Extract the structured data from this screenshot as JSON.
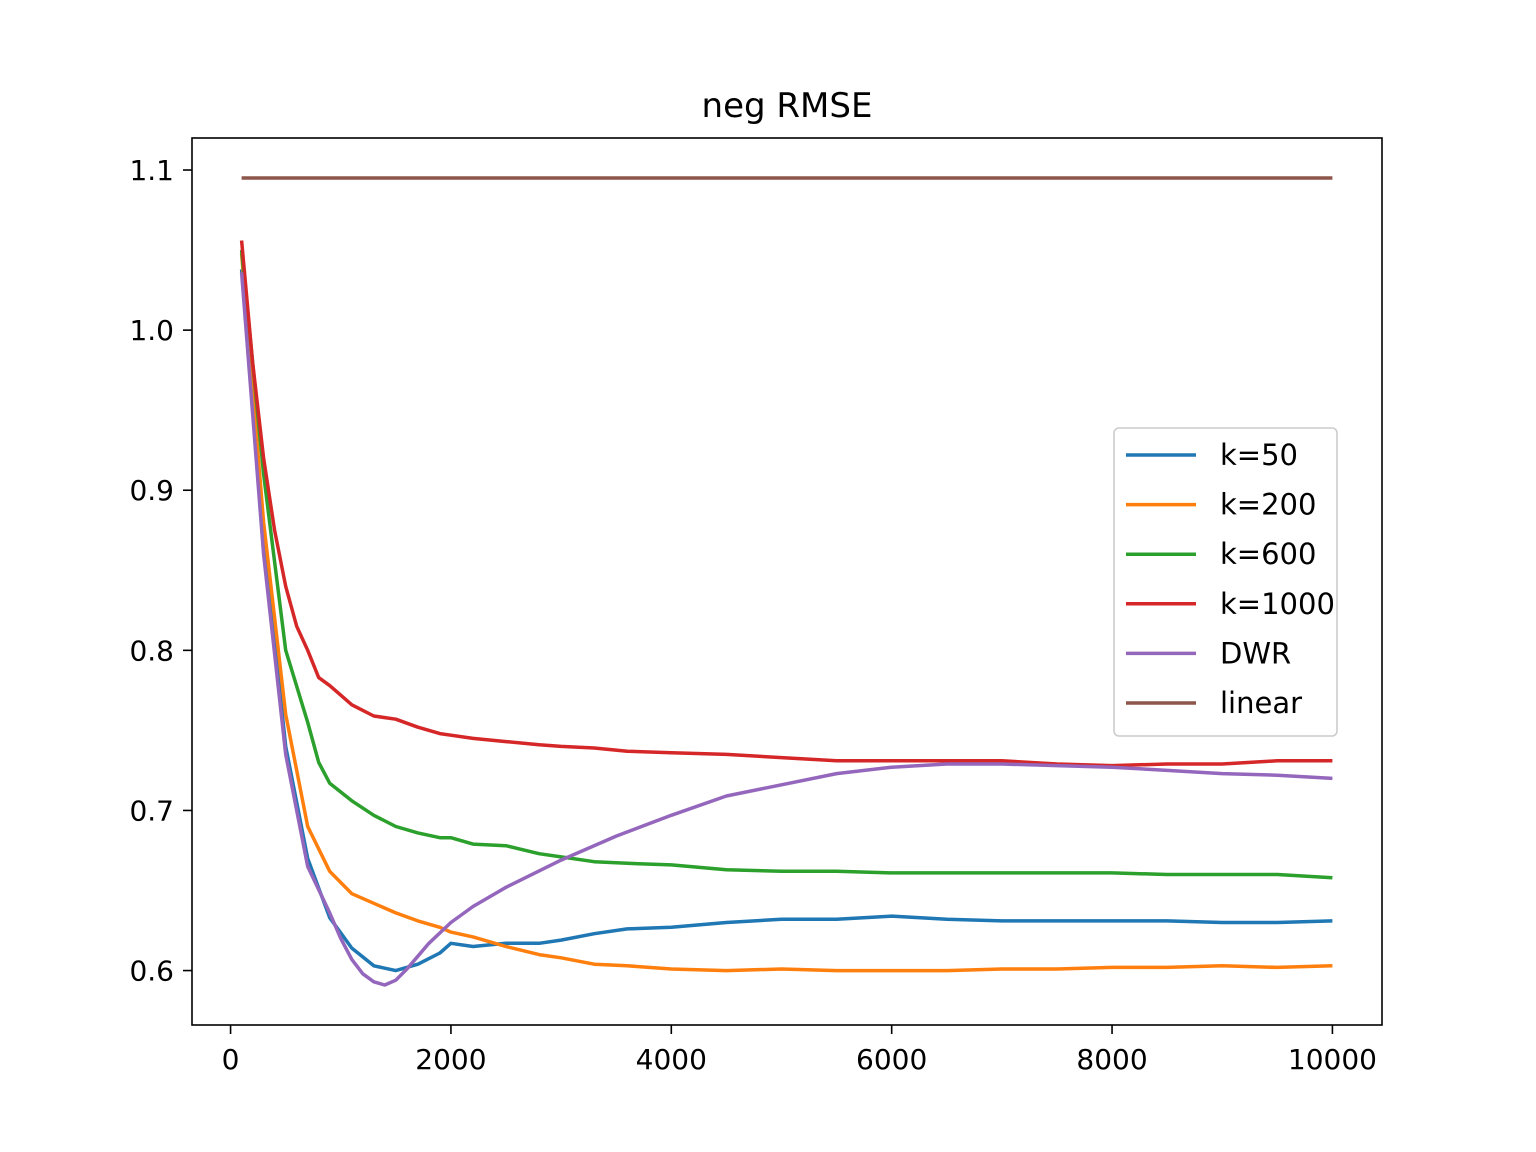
{
  "chart_data": {
    "type": "line",
    "title": "neg RMSE",
    "xlabel": "",
    "ylabel": "",
    "xlim": [
      -350,
      10450
    ],
    "ylim": [
      0.566,
      1.12
    ],
    "xticks": [
      0,
      2000,
      4000,
      6000,
      8000,
      10000
    ],
    "xtick_labels": [
      "0",
      "2000",
      "4000",
      "6000",
      "8000",
      "10000"
    ],
    "yticks": [
      0.6,
      0.7,
      0.8,
      0.9,
      1.0,
      1.1
    ],
    "ytick_labels": [
      "0.6",
      "0.7",
      "0.8",
      "0.9",
      "1.0",
      "1.1"
    ],
    "grid": false,
    "legend_position": "center-right",
    "series": [
      {
        "name": "k=50",
        "color": "#1f77b4",
        "x": [
          100,
          300,
          500,
          700,
          900,
          1100,
          1300,
          1500,
          1700,
          1900,
          2000,
          2200,
          2500,
          2800,
          3000,
          3300,
          3600,
          4000,
          4500,
          5000,
          5500,
          6000,
          6500,
          7000,
          7500,
          8000,
          8500,
          9000,
          9500,
          10000
        ],
        "values": [
          1.038,
          0.87,
          0.74,
          0.67,
          0.633,
          0.614,
          0.603,
          0.6,
          0.604,
          0.611,
          0.617,
          0.615,
          0.617,
          0.617,
          0.619,
          0.623,
          0.626,
          0.627,
          0.63,
          0.632,
          0.632,
          0.634,
          0.632,
          0.631,
          0.631,
          0.631,
          0.631,
          0.63,
          0.63,
          0.631
        ]
      },
      {
        "name": "k=200",
        "color": "#ff7f0e",
        "x": [
          100,
          300,
          500,
          700,
          900,
          1100,
          1300,
          1500,
          1700,
          1900,
          2000,
          2200,
          2500,
          2800,
          3000,
          3300,
          3600,
          4000,
          4500,
          5000,
          5500,
          6000,
          6500,
          7000,
          7500,
          8000,
          8500,
          9000,
          9500,
          10000
        ],
        "values": [
          1.048,
          0.88,
          0.76,
          0.69,
          0.662,
          0.648,
          0.642,
          0.636,
          0.631,
          0.627,
          0.624,
          0.621,
          0.615,
          0.61,
          0.608,
          0.604,
          0.603,
          0.601,
          0.6,
          0.601,
          0.6,
          0.6,
          0.6,
          0.601,
          0.601,
          0.602,
          0.602,
          0.603,
          0.602,
          0.603
        ]
      },
      {
        "name": "k=600",
        "color": "#2ca02c",
        "x": [
          100,
          300,
          500,
          700,
          800,
          900,
          1100,
          1300,
          1500,
          1700,
          1900,
          2000,
          2200,
          2500,
          2800,
          3000,
          3300,
          3600,
          4000,
          4500,
          5000,
          5500,
          6000,
          6500,
          7000,
          7500,
          8000,
          8500,
          9000,
          9500,
          10000
        ],
        "values": [
          1.05,
          0.91,
          0.8,
          0.755,
          0.73,
          0.717,
          0.706,
          0.697,
          0.69,
          0.686,
          0.683,
          0.683,
          0.679,
          0.678,
          0.673,
          0.671,
          0.668,
          0.667,
          0.666,
          0.663,
          0.662,
          0.662,
          0.661,
          0.661,
          0.661,
          0.661,
          0.661,
          0.66,
          0.66,
          0.66,
          0.658
        ]
      },
      {
        "name": "k=1000",
        "color": "#d62728",
        "x": [
          100,
          200,
          300,
          400,
          500,
          600,
          700,
          800,
          900,
          1000,
          1100,
          1300,
          1500,
          1700,
          1900,
          2000,
          2200,
          2500,
          2800,
          3000,
          3300,
          3600,
          4000,
          4500,
          5000,
          5500,
          6000,
          6500,
          7000,
          7500,
          8000,
          8500,
          9000,
          9500,
          10000
        ],
        "values": [
          1.056,
          0.98,
          0.92,
          0.875,
          0.84,
          0.815,
          0.8,
          0.783,
          0.778,
          0.772,
          0.766,
          0.759,
          0.757,
          0.752,
          0.748,
          0.747,
          0.745,
          0.743,
          0.741,
          0.74,
          0.739,
          0.737,
          0.736,
          0.735,
          0.733,
          0.731,
          0.731,
          0.731,
          0.731,
          0.729,
          0.728,
          0.729,
          0.729,
          0.731,
          0.731
        ]
      },
      {
        "name": "DWR",
        "color": "#9467bd",
        "x": [
          100,
          300,
          500,
          700,
          900,
          1000,
          1100,
          1200,
          1300,
          1400,
          1500,
          1600,
          1700,
          1800,
          2000,
          2200,
          2500,
          3000,
          3500,
          4000,
          4500,
          5000,
          5500,
          6000,
          6500,
          7000,
          7500,
          8000,
          8500,
          9000,
          9500,
          10000
        ],
        "values": [
          1.036,
          0.86,
          0.735,
          0.665,
          0.636,
          0.62,
          0.607,
          0.598,
          0.593,
          0.591,
          0.594,
          0.601,
          0.609,
          0.617,
          0.63,
          0.64,
          0.652,
          0.669,
          0.684,
          0.697,
          0.709,
          0.716,
          0.723,
          0.727,
          0.729,
          0.729,
          0.728,
          0.727,
          0.725,
          0.723,
          0.722,
          0.72
        ]
      },
      {
        "name": "linear",
        "color": "#8c564b",
        "x": [
          100,
          10000
        ],
        "values": [
          1.095,
          1.095
        ]
      }
    ]
  }
}
